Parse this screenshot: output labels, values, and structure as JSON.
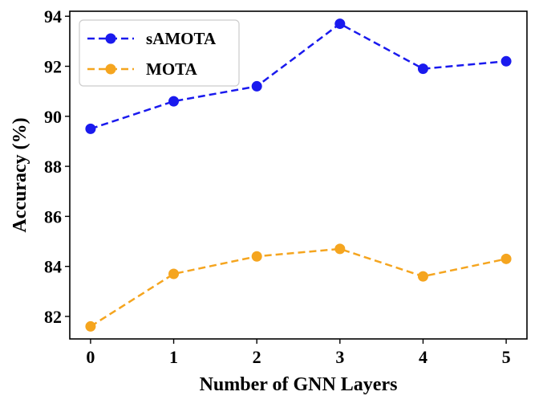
{
  "chart_data": {
    "type": "line",
    "x": [
      0,
      1,
      2,
      3,
      4,
      5
    ],
    "xticks": [
      "0",
      "1",
      "2",
      "3",
      "4",
      "5"
    ],
    "yticks": [
      "82",
      "84",
      "86",
      "88",
      "90",
      "92",
      "94"
    ],
    "xlim": [
      -0.25,
      5.25
    ],
    "ylim": [
      81.1,
      94.2
    ],
    "xlabel": "Number of GNN Layers",
    "ylabel": "Accuracy (%)",
    "legend_position": "top-left",
    "grid": false,
    "series": [
      {
        "name": "sAMOTA",
        "values": [
          89.5,
          90.6,
          91.2,
          93.7,
          91.9,
          92.2
        ],
        "color": "#1a1aee",
        "line_style": "dashed",
        "marker": "circle"
      },
      {
        "name": "MOTA",
        "values": [
          81.6,
          83.7,
          84.4,
          84.7,
          83.6,
          84.3
        ],
        "color": "#f5a51f",
        "line_style": "dashed",
        "marker": "circle"
      }
    ]
  }
}
